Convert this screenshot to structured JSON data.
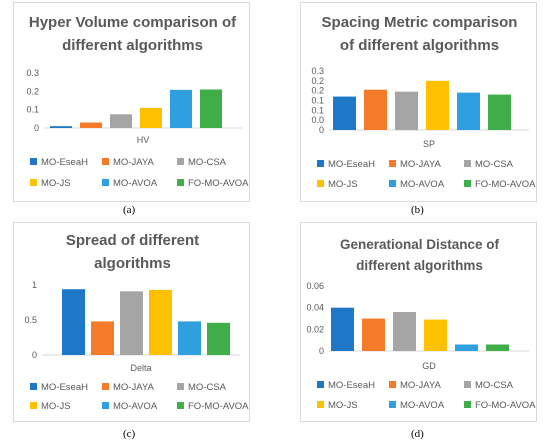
{
  "chart_data": [
    {
      "type": "bar",
      "title": "Hyper Volume comparison of different algorithms",
      "title_lines": [
        "Hyper Volume comparison of",
        "different algorithms"
      ],
      "xlabel": "HV",
      "categories": [
        "HV"
      ],
      "series": [
        {
          "name": "MO-EseaH",
          "values": [
            0.01
          ]
        },
        {
          "name": "MO-JAYA",
          "values": [
            0.03
          ]
        },
        {
          "name": "MO-CSA",
          "values": [
            0.075
          ]
        },
        {
          "name": "MO-JS",
          "values": [
            0.11
          ]
        },
        {
          "name": "MO-AVOA",
          "values": [
            0.208
          ]
        },
        {
          "name": "FO-MO-AVOA",
          "values": [
            0.21
          ]
        }
      ],
      "ylim": [
        0,
        0.3
      ],
      "yticks": [
        "0.3",
        "0.2",
        "0.1",
        "0"
      ],
      "legend": "bottom",
      "grid": false,
      "caption": "(a)"
    },
    {
      "type": "bar",
      "title": "Spacing Metric comparison of different algorithms",
      "title_lines": [
        "Spacing Metric comparison",
        "of different algorithms"
      ],
      "xlabel": "SP",
      "categories": [
        "SP"
      ],
      "series": [
        {
          "name": "MO-EseaH",
          "values": [
            0.17
          ]
        },
        {
          "name": "MO-JAYA",
          "values": [
            0.205
          ]
        },
        {
          "name": "MO-CSA",
          "values": [
            0.195
          ]
        },
        {
          "name": "MO-JS",
          "values": [
            0.25
          ]
        },
        {
          "name": "MO-AVOA",
          "values": [
            0.19
          ]
        },
        {
          "name": "FO-MO-AVOA",
          "values": [
            0.18
          ]
        }
      ],
      "ylim": [
        0,
        0.3
      ],
      "yticks": [
        "0.3",
        "0.2",
        "0.2",
        "0.1",
        "0.1",
        "0.0",
        "0"
      ],
      "legend": "bottom",
      "grid": false,
      "caption": "(b)"
    },
    {
      "type": "bar",
      "title": "Spread of different algorithms",
      "title_lines": [
        "Spread of different",
        "algorithms"
      ],
      "xlabel": "Delta",
      "categories": [
        "Delta"
      ],
      "series": [
        {
          "name": "MO-EseaH",
          "values": [
            0.94
          ]
        },
        {
          "name": "MO-JAYA",
          "values": [
            0.48
          ]
        },
        {
          "name": "MO-CSA",
          "values": [
            0.91
          ]
        },
        {
          "name": "MO-JS",
          "values": [
            0.93
          ]
        },
        {
          "name": "MO-AVOA",
          "values": [
            0.48
          ]
        },
        {
          "name": "FO-MO-AVOA",
          "values": [
            0.46
          ]
        }
      ],
      "ylim": [
        0,
        1
      ],
      "yticks": [
        "1",
        "0.5",
        "0"
      ],
      "legend": "bottom",
      "grid": false,
      "caption": "(c)"
    },
    {
      "type": "bar",
      "title": "Generational Distance of different algorithms",
      "title_lines": [
        "Generational Distance of",
        "different algorithms"
      ],
      "xlabel": "GD",
      "categories": [
        "GD"
      ],
      "series": [
        {
          "name": "MO-EseaH",
          "values": [
            0.04
          ]
        },
        {
          "name": "MO-JAYA",
          "values": [
            0.03
          ]
        },
        {
          "name": "MO-CSA",
          "values": [
            0.036
          ]
        },
        {
          "name": "MO-JS",
          "values": [
            0.029
          ]
        },
        {
          "name": "MO-AVOA",
          "values": [
            0.006
          ]
        },
        {
          "name": "FO-MO-AVOA",
          "values": [
            0.006
          ]
        }
      ],
      "ylim": [
        0,
        0.06
      ],
      "yticks": [
        "0.06",
        "0.04",
        "0.02",
        "0"
      ],
      "legend": "bottom",
      "grid": false,
      "caption": "(d)"
    }
  ],
  "colors": [
    "#1f77c8",
    "#f47b2a",
    "#a5a5a5",
    "#ffc000",
    "#2f9fe0",
    "#3fae49"
  ]
}
